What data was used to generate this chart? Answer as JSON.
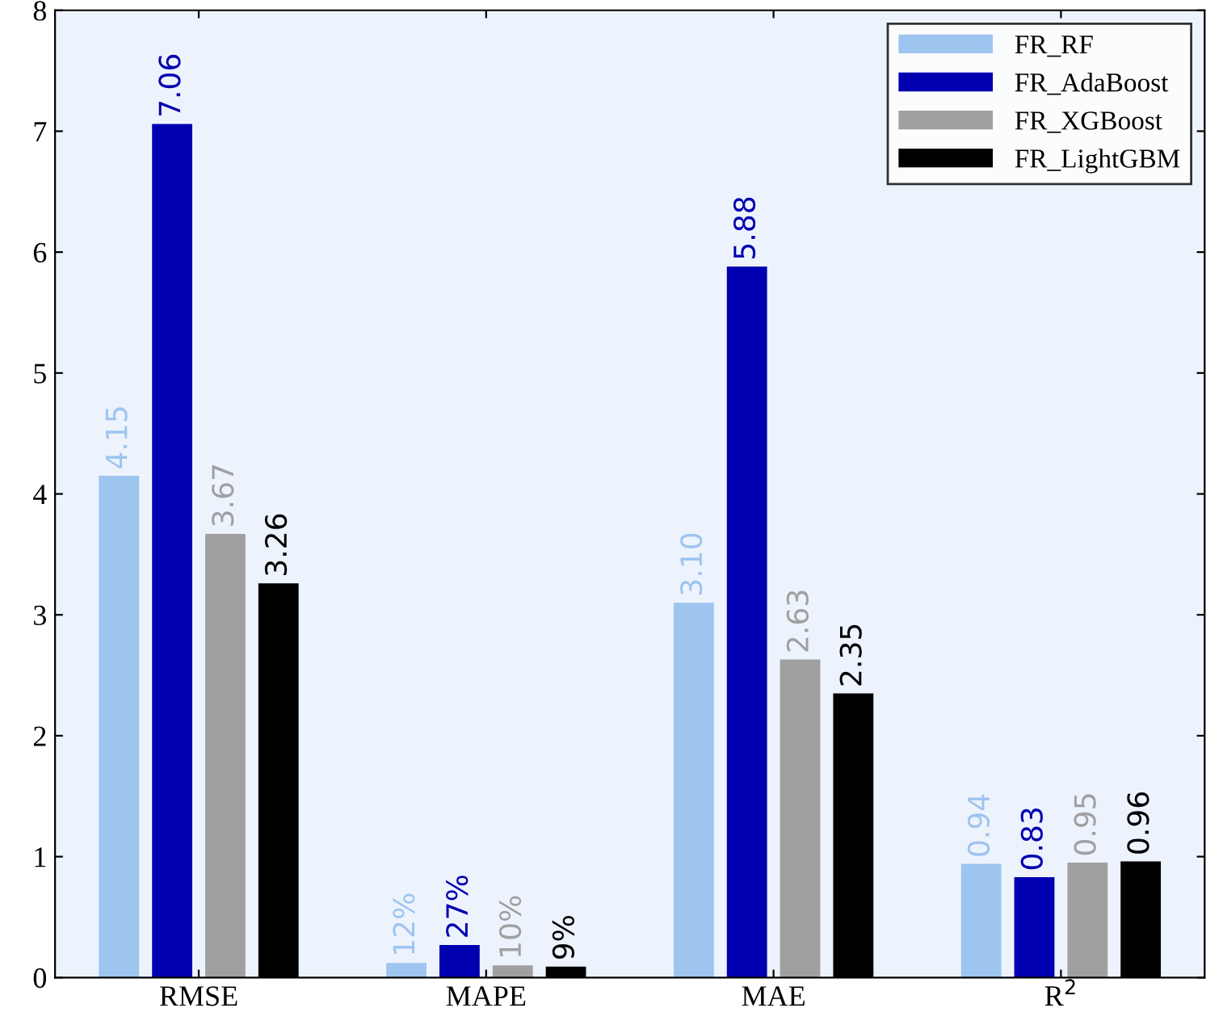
{
  "chart_data": {
    "type": "bar",
    "categories": [
      "RMSE",
      "MAPE",
      "MAE",
      "R$^{2}$"
    ],
    "series": [
      {
        "name": "FR_RF",
        "color": "#9ec4f0",
        "values": [
          4.15,
          0.12,
          3.1,
          0.94
        ],
        "value_labels": [
          "4.15",
          "12%",
          "3.10",
          "0.94"
        ]
      },
      {
        "name": "FR_AdaBoost",
        "color": "#0000b0",
        "values": [
          7.06,
          0.27,
          5.88,
          0.83
        ],
        "value_labels": [
          "7.06",
          "27%",
          "5.88",
          "0.83"
        ]
      },
      {
        "name": "FR_XGBoost",
        "color": "#a0a0a0",
        "values": [
          3.67,
          0.1,
          2.63,
          0.95
        ],
        "value_labels": [
          "3.67",
          "10%",
          "2.63",
          "0.95"
        ]
      },
      {
        "name": "FR_LightGBM",
        "color": "#000000",
        "values": [
          3.26,
          0.09,
          2.35,
          0.96
        ],
        "value_labels": [
          "3.26",
          "9%",
          "2.35",
          "0.96"
        ]
      }
    ],
    "ylim": [
      0,
      8
    ],
    "yticks": [
      0,
      1,
      2,
      3,
      4,
      5,
      6,
      7,
      8
    ],
    "grid": false,
    "legend": "top right"
  }
}
